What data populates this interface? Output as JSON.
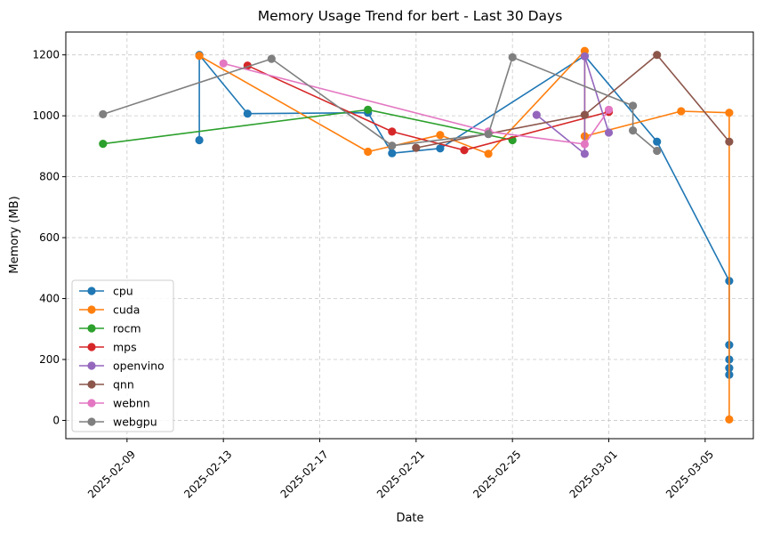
{
  "chart_data": {
    "type": "line",
    "title": "Memory Usage Trend for bert - Last 30 Days",
    "xlabel": "Date",
    "ylabel": "Memory (MB)",
    "xlim": [
      "2025-02-06T11:00",
      "2025-03-07T00:00"
    ],
    "ylim": [
      -60,
      1275
    ],
    "x_ticks": [
      "2025-02-09",
      "2025-02-13",
      "2025-02-17",
      "2025-02-21",
      "2025-02-25",
      "2025-03-01",
      "2025-03-05"
    ],
    "y_ticks": [
      0,
      200,
      400,
      600,
      800,
      1000,
      1200
    ],
    "grid": true,
    "legend_position": "lower left",
    "series": [
      {
        "name": "cpu",
        "color": "#1f77b4",
        "points": [
          [
            "2025-02-12T00:00",
            920
          ],
          [
            "2025-02-12T00:00",
            1200
          ],
          [
            "2025-02-14T00:00",
            1007
          ],
          [
            "2025-02-19T00:00",
            1010
          ],
          [
            "2025-02-20T00:00",
            877
          ],
          [
            "2025-02-22T00:00",
            893
          ],
          [
            "2025-02-28T00:00",
            1197
          ],
          [
            "2025-03-03T00:00",
            915
          ],
          [
            "2025-03-06T00:00",
            458
          ],
          [
            "2025-03-06T00:00",
            248
          ],
          [
            "2025-03-06T00:00",
            200
          ],
          [
            "2025-03-06T00:00",
            172
          ],
          [
            "2025-03-06T00:00",
            150
          ]
        ]
      },
      {
        "name": "cuda",
        "color": "#ff7f0e",
        "points": [
          [
            "2025-02-12T00:00",
            1197
          ],
          [
            "2025-02-19T00:00",
            882
          ],
          [
            "2025-02-22T00:00",
            937
          ],
          [
            "2025-02-24T00:00",
            875
          ],
          [
            "2025-02-28T00:00",
            1213
          ],
          [
            "2025-02-28T00:00",
            933
          ],
          [
            "2025-03-04T00:00",
            1015
          ],
          [
            "2025-03-06T00:00",
            1010
          ],
          [
            "2025-03-06T00:00",
            3
          ]
        ]
      },
      {
        "name": "rocm",
        "color": "#2ca02c",
        "points": [
          [
            "2025-02-08T00:00",
            908
          ],
          [
            "2025-02-19T00:00",
            1020
          ],
          [
            "2025-02-25T00:00",
            920
          ]
        ]
      },
      {
        "name": "mps",
        "color": "#d62728",
        "points": [
          [
            "2025-02-14T00:00",
            1165
          ],
          [
            "2025-02-20T00:00",
            948
          ],
          [
            "2025-02-23T00:00",
            887
          ],
          [
            "2025-03-01T00:00",
            1013
          ]
        ]
      },
      {
        "name": "openvino",
        "color": "#9467bd",
        "points": [
          [
            "2025-02-26T00:00",
            1003
          ],
          [
            "2025-02-28T00:00",
            875
          ],
          [
            "2025-02-28T00:00",
            1195
          ],
          [
            "2025-03-01T00:00",
            945
          ]
        ]
      },
      {
        "name": "qnn",
        "color": "#8c564b",
        "points": [
          [
            "2025-02-21T00:00",
            895
          ],
          [
            "2025-02-28T00:00",
            1003
          ],
          [
            "2025-03-03T00:00",
            1200
          ],
          [
            "2025-03-06T00:00",
            915
          ]
        ]
      },
      {
        "name": "webnn",
        "color": "#e377c2",
        "points": [
          [
            "2025-02-13T00:00",
            1172
          ],
          [
            "2025-02-24T00:00",
            948
          ],
          [
            "2025-02-28T00:00",
            907
          ],
          [
            "2025-03-01T00:00",
            1020
          ]
        ]
      },
      {
        "name": "webgpu",
        "color": "#7f7f7f",
        "points": [
          [
            "2025-02-08T00:00",
            1005
          ],
          [
            "2025-02-15T00:00",
            1187
          ],
          [
            "2025-02-20T00:00",
            902
          ],
          [
            "2025-02-24T00:00",
            940
          ],
          [
            "2025-02-25T00:00",
            1192
          ],
          [
            "2025-03-02T00:00",
            1033
          ],
          [
            "2025-03-02T00:00",
            952
          ],
          [
            "2025-03-03T00:00",
            885
          ]
        ]
      }
    ]
  }
}
